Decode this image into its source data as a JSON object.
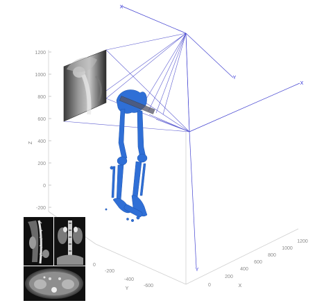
{
  "z_axis": {
    "label": "Z",
    "ticks": [
      "1200",
      "1000",
      "800",
      "600",
      "400",
      "200",
      "0",
      "-200"
    ]
  },
  "y_axis": {
    "label": "Y",
    "ticks": [
      "0",
      "-200",
      "-400",
      "-600"
    ]
  },
  "x_axis": {
    "label": "X",
    "ticks": [
      "0",
      "200",
      "400",
      "600",
      "800",
      "1000",
      "1200"
    ]
  },
  "frames": {
    "source_top": {
      "x_label": "X",
      "y_label": "Y"
    },
    "source_right": {
      "x_label": "X",
      "y_label": "Y"
    }
  },
  "colors": {
    "rays": "#5a5ad0",
    "bones": "#2f6fd6",
    "axes": "#c8c8c8",
    "ticks": "#8a8a8a"
  },
  "panels": {
    "drr_projection": "xray-drr-image",
    "ct_sagittal": "ct-sagittal-slice",
    "ct_coronal": "ct-coronal-slice",
    "ct_axial": "ct-axial-slice"
  }
}
